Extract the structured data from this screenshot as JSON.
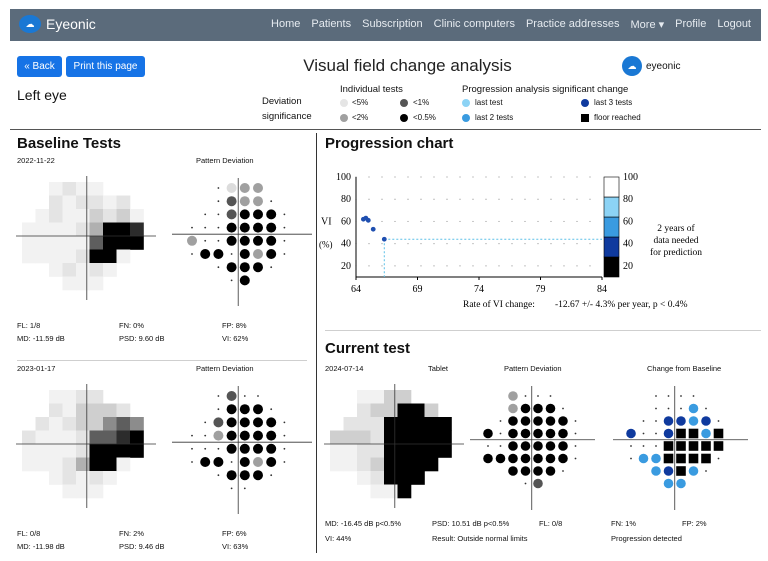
{
  "nav": {
    "brand": "Eyeonic",
    "links": [
      "Home",
      "Patients",
      "Subscription",
      "Clinic computers",
      "Practice addresses",
      "More ▾",
      "Profile",
      "Logout"
    ]
  },
  "toolbar": {
    "back_label": "« Back",
    "print_label": "Print this page"
  },
  "page_title": "Visual field change analysis",
  "brand_small": "eyeonic",
  "eye_label": "Left eye",
  "legend": {
    "deviation_label": "Deviation significance",
    "individual_head": "Individual tests",
    "individual": [
      {
        "label": "<5%",
        "color": "#e5e5e5"
      },
      {
        "label": "<1%",
        "color": "#555555"
      },
      {
        "label": "<2%",
        "color": "#a0a0a0"
      },
      {
        "label": "<0.5%",
        "color": "#000000"
      }
    ],
    "progression_head": "Progression analysis significant change",
    "progression": [
      {
        "label": "last test",
        "color": "#8cd3f5"
      },
      {
        "label": "last 3 tests",
        "color": "#0f3a9e"
      },
      {
        "label": "last 2 tests",
        "color": "#3a9be0"
      },
      {
        "label": "floor reached",
        "color": "#000000"
      }
    ]
  },
  "baseline": {
    "heading": "Baseline Tests",
    "test1": {
      "date": "2022-11-22",
      "pd_label": "Pattern Deviation",
      "fl": "FL: 1/8",
      "fn": "FN: 0%",
      "fp": "FP: 8%",
      "md": "MD: -11.59 dB",
      "psd": "PSD: 9.60 dB",
      "vi": "VI: 62%"
    },
    "test2": {
      "date": "2023-01-17",
      "pd_label": "Pattern Deviation",
      "fl": "FL: 0/8",
      "fn": "FN: 2%",
      "fp": "FP: 6%",
      "md": "MD: -11.98 dB",
      "psd": "PSD: 9.46 dB",
      "vi": "VI: 63%"
    }
  },
  "progression_chart": {
    "heading": "Progression chart"
  },
  "chart_data": {
    "type": "scatter",
    "title": "",
    "xlabel": "",
    "ylabel": "VI (%)",
    "xlim": [
      64,
      84
    ],
    "ylim": [
      10,
      100
    ],
    "x_ticks": [
      64,
      69,
      74,
      79,
      84
    ],
    "y_ticks": [
      20,
      40,
      60,
      80,
      100
    ],
    "grid": true,
    "points": [
      {
        "x": 64.6,
        "y": 62
      },
      {
        "x": 64.8,
        "y": 63
      },
      {
        "x": 65.0,
        "y": 61
      },
      {
        "x": 65.4,
        "y": 53
      },
      {
        "x": 66.3,
        "y": 44
      }
    ],
    "baseline_guide": {
      "x": 66.3,
      "y": 44
    },
    "colorbar": {
      "ticks": [
        20,
        40,
        60,
        80,
        100
      ],
      "colors": [
        "#000000",
        "#0f3a9e",
        "#3a9be0",
        "#8cd3f5",
        "#ffffff"
      ]
    },
    "note_lines": [
      "2 years of",
      "data needed",
      "for prediction"
    ],
    "rate_label": "Rate of VI change:",
    "rate_value": "-12.67 +/- 4.3% per year, p < 0.4%"
  },
  "current": {
    "heading": "Current test",
    "date": "2024-07-14",
    "device": "Tablet",
    "pd_label": "Pattern Deviation",
    "cfb_label": "Change from Baseline",
    "md": "MD: -16.45 dB p<0.5%",
    "psd": "PSD: 10.51 dB p<0.5%",
    "fl": "FL: 0/8",
    "fn": "FN: 1%",
    "fp": "FP: 2%",
    "vi": "VI: 44%",
    "result": "Result: Outside normal limits",
    "progression": "Progression detected"
  },
  "fields": {
    "gray1": {
      "cols": [
        [
          3,
          6
        ],
        [
          2,
          7
        ],
        [
          1,
          8
        ],
        [
          0,
          8
        ],
        [
          0,
          8
        ],
        [
          1,
          8
        ],
        [
          2,
          7
        ],
        [
          3,
          6
        ]
      ],
      "vals": [
        "ffffff"
      ]
    },
    "palette": {
      "0": "#ffffff",
      "1": "#f2f2f2",
      "2": "#e4e4e4",
      "3": "#cfcfcf",
      "4": "#b0b0b0",
      "5": "#8c8c8c",
      "6": "#5e5e5e",
      "7": "#2c2c2c",
      "8": "#000000"
    },
    "g1": [
      "  1211  ",
      "  212212 ",
      " 12113231",
      "111124887",
      "111116888",
      "11112881",
      "  12121 ",
      "   111  "
    ],
    "g2": [
      "  1122  ",
      "  213332 ",
      " 21233565",
      "211126678",
      "111128888",
      "11124881",
      "  12121 ",
      "   111  "
    ],
    "g3": [
      "  1133  ",
      "  233883 ",
      " 22288888",
      "333288888",
      "112288888",
      "11238888",
      "  12888 ",
      "   118  "
    ],
    "pd1": [
      "  .5bb  ",
      "  .Pbb.  ",
      " ..PBBB. ",
      "...BBBB.",
      "g..BBBB.",
      ".BB.BgB.",
      "  .BBB. ",
      "   .B   "
    ],
    "pd2": [
      "  .p..  ",
      "  .BBB.  ",
      " .pBBBB. ",
      "..gBBBB.",
      "...BBBB.",
      ".BB.BgB.",
      "  .BBB. ",
      "   ..   "
    ],
    "pd3": [
      "  g...  ",
      "  gBBB.  ",
      " .BBBBB. ",
      "B.BBBBB.",
      "..BBBBB.",
      "BBBBBBB.",
      "  BBBB. ",
      "   .p   "
    ],
    "cfb": [
      "  ....  ",
      "  ...L.  ",
      " ..NNLN. ",
      "N..NSSLS",
      "...SSSSS",
      ".LLSSSS.",
      "  LNSL. ",
      "   LL   "
    ]
  }
}
